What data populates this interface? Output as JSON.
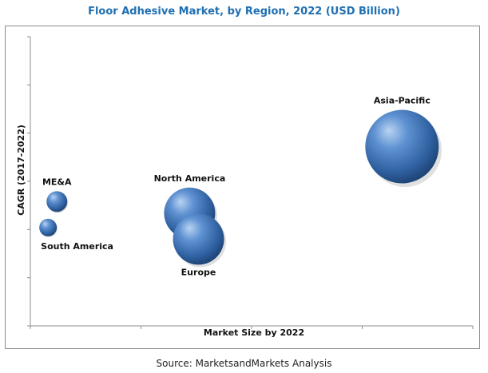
{
  "chart_data": {
    "type": "bubble",
    "title": "Floor Adhesive Market, by Region, 2022 (USD Billion)",
    "xlabel": "Market Size by 2022",
    "ylabel": "CAGR (2017-2022)",
    "source": "Source: MarketsandMarkets Analysis",
    "grid": false,
    "x_ticks_labeled": false,
    "y_ticks_labeled": false,
    "bubble_color": "#4a7fc1",
    "series": [
      {
        "name": "Asia-Pacific",
        "x": 8.4,
        "y": 6.2,
        "size": 46,
        "label_position": "top"
      },
      {
        "name": "North America",
        "x": 3.6,
        "y": 3.9,
        "size": 32,
        "label_position": "top"
      },
      {
        "name": "Europe",
        "x": 3.8,
        "y": 3.0,
        "size": 32,
        "label_position": "bottom"
      },
      {
        "name": "ME&A",
        "x": 0.6,
        "y": 4.3,
        "size": 13,
        "label_position": "top"
      },
      {
        "name": "South America",
        "x": 0.4,
        "y": 3.4,
        "size": 11,
        "label_position": "bottom-right"
      }
    ]
  }
}
